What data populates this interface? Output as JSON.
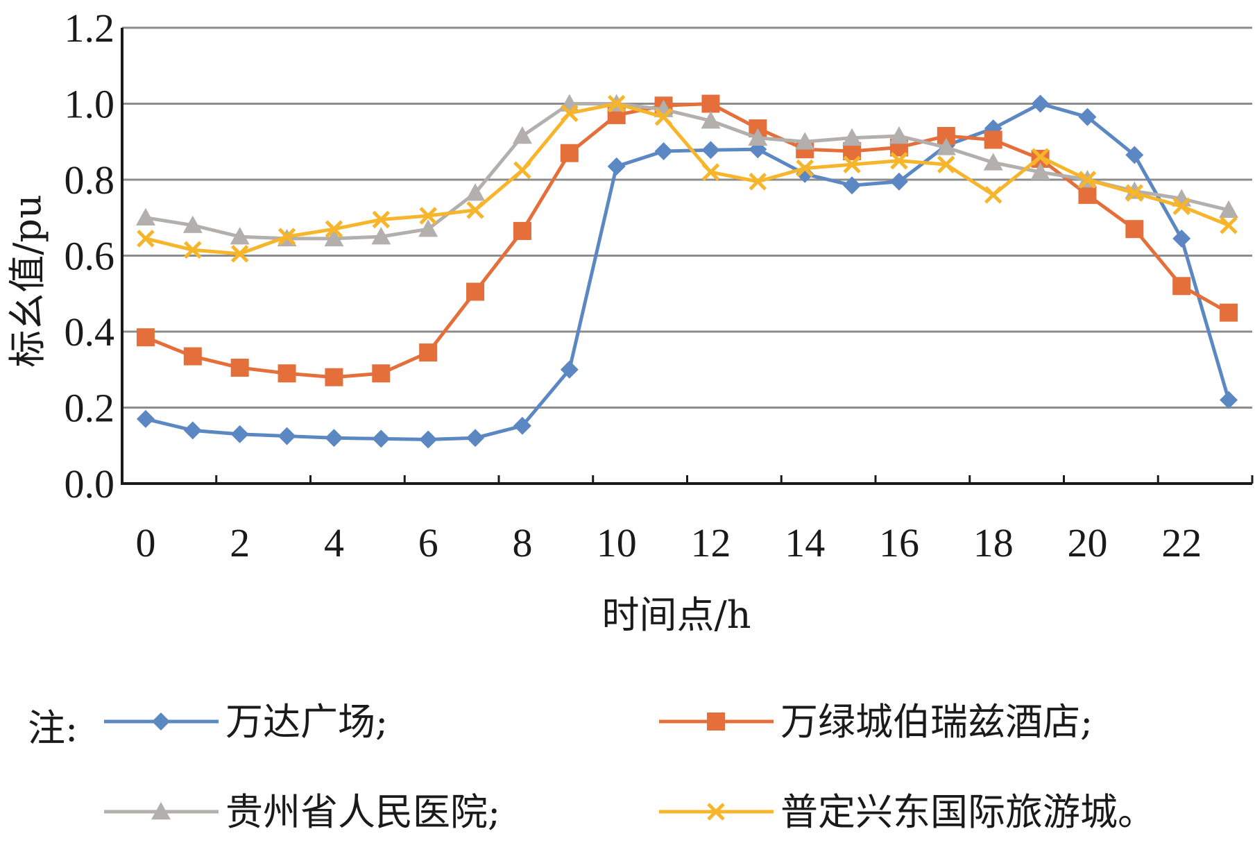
{
  "chart_data": {
    "type": "line",
    "xlabel": "时间点/h",
    "ylabel": "标幺值/pu",
    "xlim": [
      0,
      23
    ],
    "ylim": [
      0,
      1.2
    ],
    "xticks": [
      "0",
      "2",
      "4",
      "6",
      "8",
      "10",
      "12",
      "14",
      "16",
      "18",
      "20",
      "22"
    ],
    "yticks": [
      "0.0",
      "0.2",
      "0.4",
      "0.6",
      "0.8",
      "1.0",
      "1.2"
    ],
    "grid": true,
    "legend_prefix": "注:",
    "legend_position": "bottom",
    "x": [
      0,
      1,
      2,
      3,
      4,
      5,
      6,
      7,
      8,
      9,
      10,
      11,
      12,
      13,
      14,
      15,
      16,
      17,
      18,
      19,
      20,
      21,
      22,
      23
    ],
    "series": [
      {
        "name": "万达广场;",
        "color": "#5b87c2",
        "marker": "diamond",
        "values": [
          0.17,
          0.14,
          0.13,
          0.125,
          0.12,
          0.118,
          0.116,
          0.12,
          0.152,
          0.3,
          0.835,
          0.875,
          0.878,
          0.88,
          0.815,
          0.785,
          0.795,
          0.89,
          0.935,
          1.0,
          0.965,
          0.865,
          0.645,
          0.22
        ]
      },
      {
        "name": "万绿城伯瑞兹酒店;",
        "color": "#e46f3a",
        "marker": "square",
        "values": [
          0.385,
          0.335,
          0.305,
          0.29,
          0.28,
          0.29,
          0.345,
          0.505,
          0.665,
          0.87,
          0.97,
          0.995,
          1.0,
          0.935,
          0.88,
          0.875,
          0.885,
          0.915,
          0.905,
          0.855,
          0.76,
          0.67,
          0.52,
          0.45
        ]
      },
      {
        "name": "贵州省人民医院;",
        "color": "#b2afad",
        "marker": "triangle",
        "values": [
          0.7,
          0.68,
          0.65,
          0.645,
          0.645,
          0.65,
          0.67,
          0.765,
          0.915,
          1.0,
          1.0,
          0.985,
          0.955,
          0.91,
          0.9,
          0.91,
          0.915,
          0.885,
          0.845,
          0.82,
          0.8,
          0.77,
          0.75,
          0.72
        ]
      },
      {
        "name": "普定兴东国际旅游城。",
        "color": "#f6b52a",
        "marker": "x",
        "values": [
          0.645,
          0.615,
          0.605,
          0.65,
          0.67,
          0.695,
          0.705,
          0.72,
          0.825,
          0.975,
          1.0,
          0.965,
          0.82,
          0.795,
          0.83,
          0.84,
          0.85,
          0.84,
          0.76,
          0.86,
          0.8,
          0.765,
          0.73,
          0.68
        ]
      }
    ]
  }
}
